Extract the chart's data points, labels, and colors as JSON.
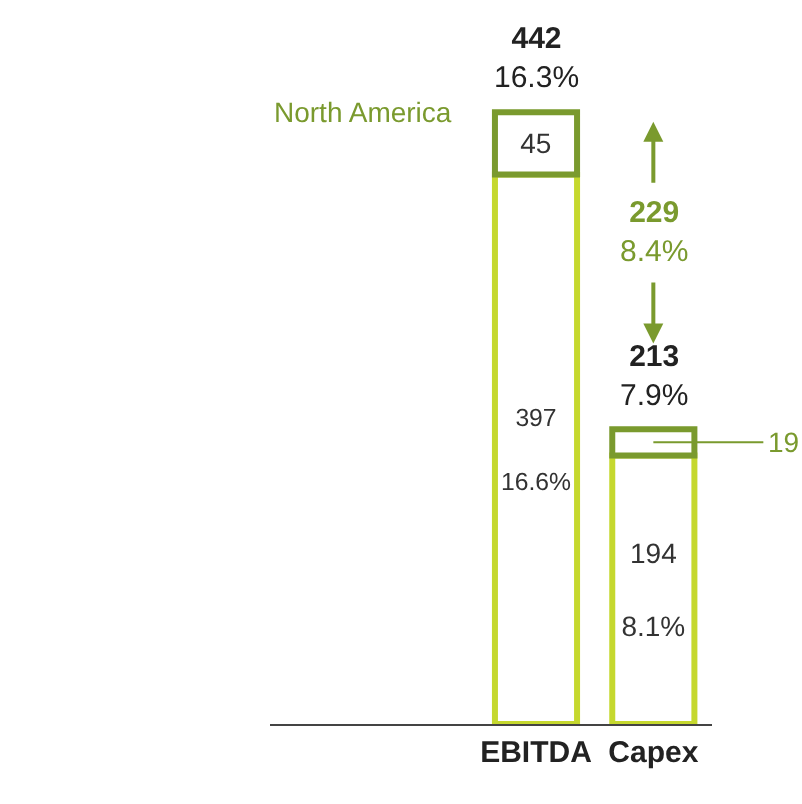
{
  "chart_data": {
    "type": "bar",
    "stacked": true,
    "categories": [
      "EBITDA",
      "Capex"
    ],
    "series": [
      {
        "color": "#c5d82e",
        "values": [
          397,
          194
        ],
        "value_labels": [
          "397\n\n16.6%",
          "194\n\n8.1%"
        ]
      },
      {
        "name": "North America",
        "color": "#7a9a2e",
        "values": [
          45,
          19
        ],
        "value_labels": [
          "45",
          "19"
        ]
      }
    ],
    "totals": [
      "442\n16.3%",
      "213\n7.9%"
    ],
    "annotations": [
      "229\n8.4%"
    ],
    "legend": false,
    "tick_labels": "x"
  }
}
